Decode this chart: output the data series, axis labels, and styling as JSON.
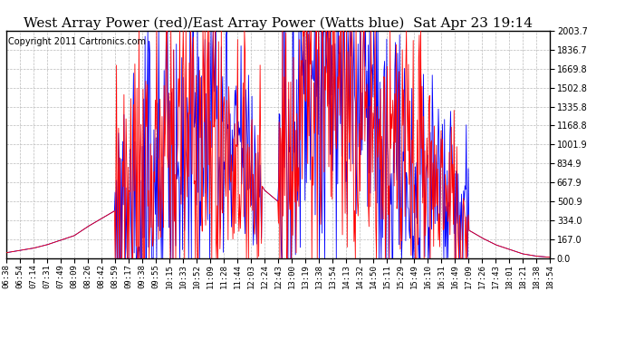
{
  "title": "West Array Power (red)/East Array Power (Watts blue)  Sat Apr 23 19:14",
  "copyright": "Copyright 2011 Cartronics.com",
  "y_ticks": [
    0.0,
    167.0,
    334.0,
    500.9,
    667.9,
    834.9,
    1001.9,
    1168.8,
    1335.8,
    1502.8,
    1669.8,
    1836.7,
    2003.7
  ],
  "ymax": 2003.7,
  "ymin": 0.0,
  "x_labels": [
    "06:38",
    "06:54",
    "07:14",
    "07:31",
    "07:49",
    "08:09",
    "08:26",
    "08:42",
    "08:59",
    "09:17",
    "09:38",
    "09:55",
    "10:15",
    "10:33",
    "10:52",
    "11:09",
    "11:28",
    "11:44",
    "12:03",
    "12:24",
    "12:43",
    "13:00",
    "13:19",
    "13:38",
    "13:54",
    "14:13",
    "14:32",
    "14:50",
    "15:11",
    "15:29",
    "15:49",
    "16:10",
    "16:31",
    "16:49",
    "17:09",
    "17:26",
    "17:43",
    "18:01",
    "18:21",
    "18:38",
    "18:54"
  ],
  "background_color": "#ffffff",
  "plot_bg_color": "#ffffff",
  "grid_color": "#bbbbbb",
  "red_color": "#ff0000",
  "blue_color": "#0000ff",
  "title_fontsize": 11,
  "copyright_fontsize": 7
}
